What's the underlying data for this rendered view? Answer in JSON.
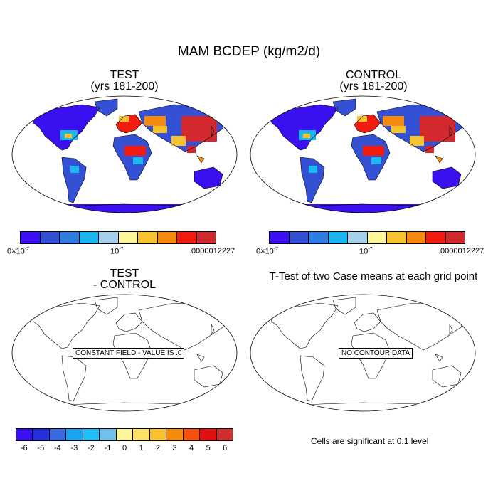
{
  "title": "MAM BCDEP (kg/m2/d)",
  "panels": {
    "test": {
      "title": "TEST",
      "subtitle": "(yrs 181-200)"
    },
    "control": {
      "title": "CONTROL",
      "subtitle": "(yrs 181-200)"
    },
    "diff": {
      "title": "TEST",
      "subtitle": "- CONTROL",
      "note": "CONSTANT FIELD - VALUE IS .0"
    },
    "ttest": {
      "title": "T-Test of two Case means at each grid point",
      "note": "NO CONTOUR DATA"
    }
  },
  "colorbar_abs": {
    "colors": [
      "#3a10f0",
      "#3451d6",
      "#2f7de0",
      "#19b6f0",
      "#a6d0ea",
      "#fdf59c",
      "#f6c22d",
      "#f58a10",
      "#f21b10",
      "#d3282e"
    ],
    "label_left_mantissa": "0×10",
    "label_left_exp": "-7",
    "label_mid_mantissa": "10",
    "label_mid_exp": "-7",
    "label_right": ".0000012227"
  },
  "colorbar_diff": {
    "colors": [
      "#3a10f0",
      "#2430d8",
      "#3b6ae0",
      "#1aa3f0",
      "#1fc0f6",
      "#71c0ea",
      "#fdf59c",
      "#fbe06a",
      "#f6c22d",
      "#f58a10",
      "#f4500f",
      "#e20f10",
      "#cf2e30"
    ],
    "ticks": [
      "-6",
      "-5",
      "-4",
      "-3",
      "-2",
      "-1",
      "0",
      "1",
      "2",
      "3",
      "4",
      "5",
      "6"
    ]
  },
  "significance_note": "Cells are significant at 0.1 level"
}
